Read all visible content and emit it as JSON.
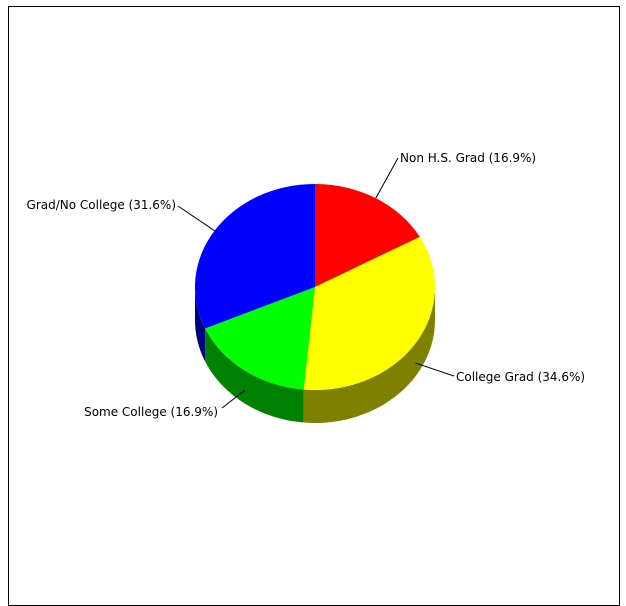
{
  "chart_data": {
    "type": "pie",
    "style": "3d",
    "title": "",
    "slices": [
      {
        "label": "Non H.S. Grad (16.9%)",
        "value": 16.9,
        "color": "#ff0000",
        "side_color": "#800000"
      },
      {
        "label": "College Grad (34.6%)",
        "value": 34.6,
        "color": "#ffff00",
        "side_color": "#808000"
      },
      {
        "label": "Some College (16.9%)",
        "value": 16.9,
        "color": "#00ff00",
        "side_color": "#008000"
      },
      {
        "label": "Grad/No College (31.6%)",
        "value": 31.6,
        "color": "#0000ff",
        "side_color": "#000080"
      }
    ]
  }
}
